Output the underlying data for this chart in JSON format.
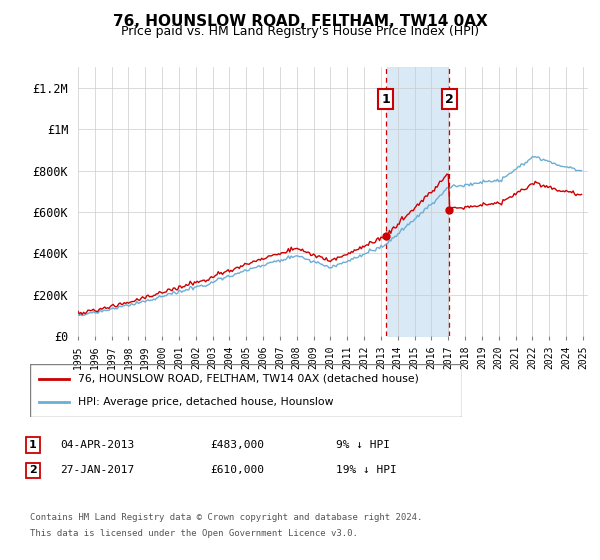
{
  "title": "76, HOUNSLOW ROAD, FELTHAM, TW14 0AX",
  "subtitle": "Price paid vs. HM Land Registry's House Price Index (HPI)",
  "legend_line1": "76, HOUNSLOW ROAD, FELTHAM, TW14 0AX (detached house)",
  "legend_line2": "HPI: Average price, detached house, Hounslow",
  "annotation1_date": "04-APR-2013",
  "annotation1_price": "£483,000",
  "annotation1_hpi": "9% ↓ HPI",
  "annotation2_date": "27-JAN-2017",
  "annotation2_price": "£610,000",
  "annotation2_hpi": "19% ↓ HPI",
  "footnote1": "Contains HM Land Registry data © Crown copyright and database right 2024.",
  "footnote2": "This data is licensed under the Open Government Licence v3.0.",
  "hpi_color": "#6baed6",
  "price_color": "#cc0000",
  "annotation_box_color": "#cc0000",
  "shading_color": "#d4e6f5",
  "ylim": [
    0,
    1300000
  ],
  "yticks": [
    0,
    200000,
    400000,
    600000,
    800000,
    1000000,
    1200000
  ],
  "ytick_labels": [
    "£0",
    "£200K",
    "£400K",
    "£600K",
    "£800K",
    "£1M",
    "£1.2M"
  ],
  "t_buy1": 2013.27,
  "t_buy2": 2017.07,
  "price1": 483000,
  "price2": 610000
}
